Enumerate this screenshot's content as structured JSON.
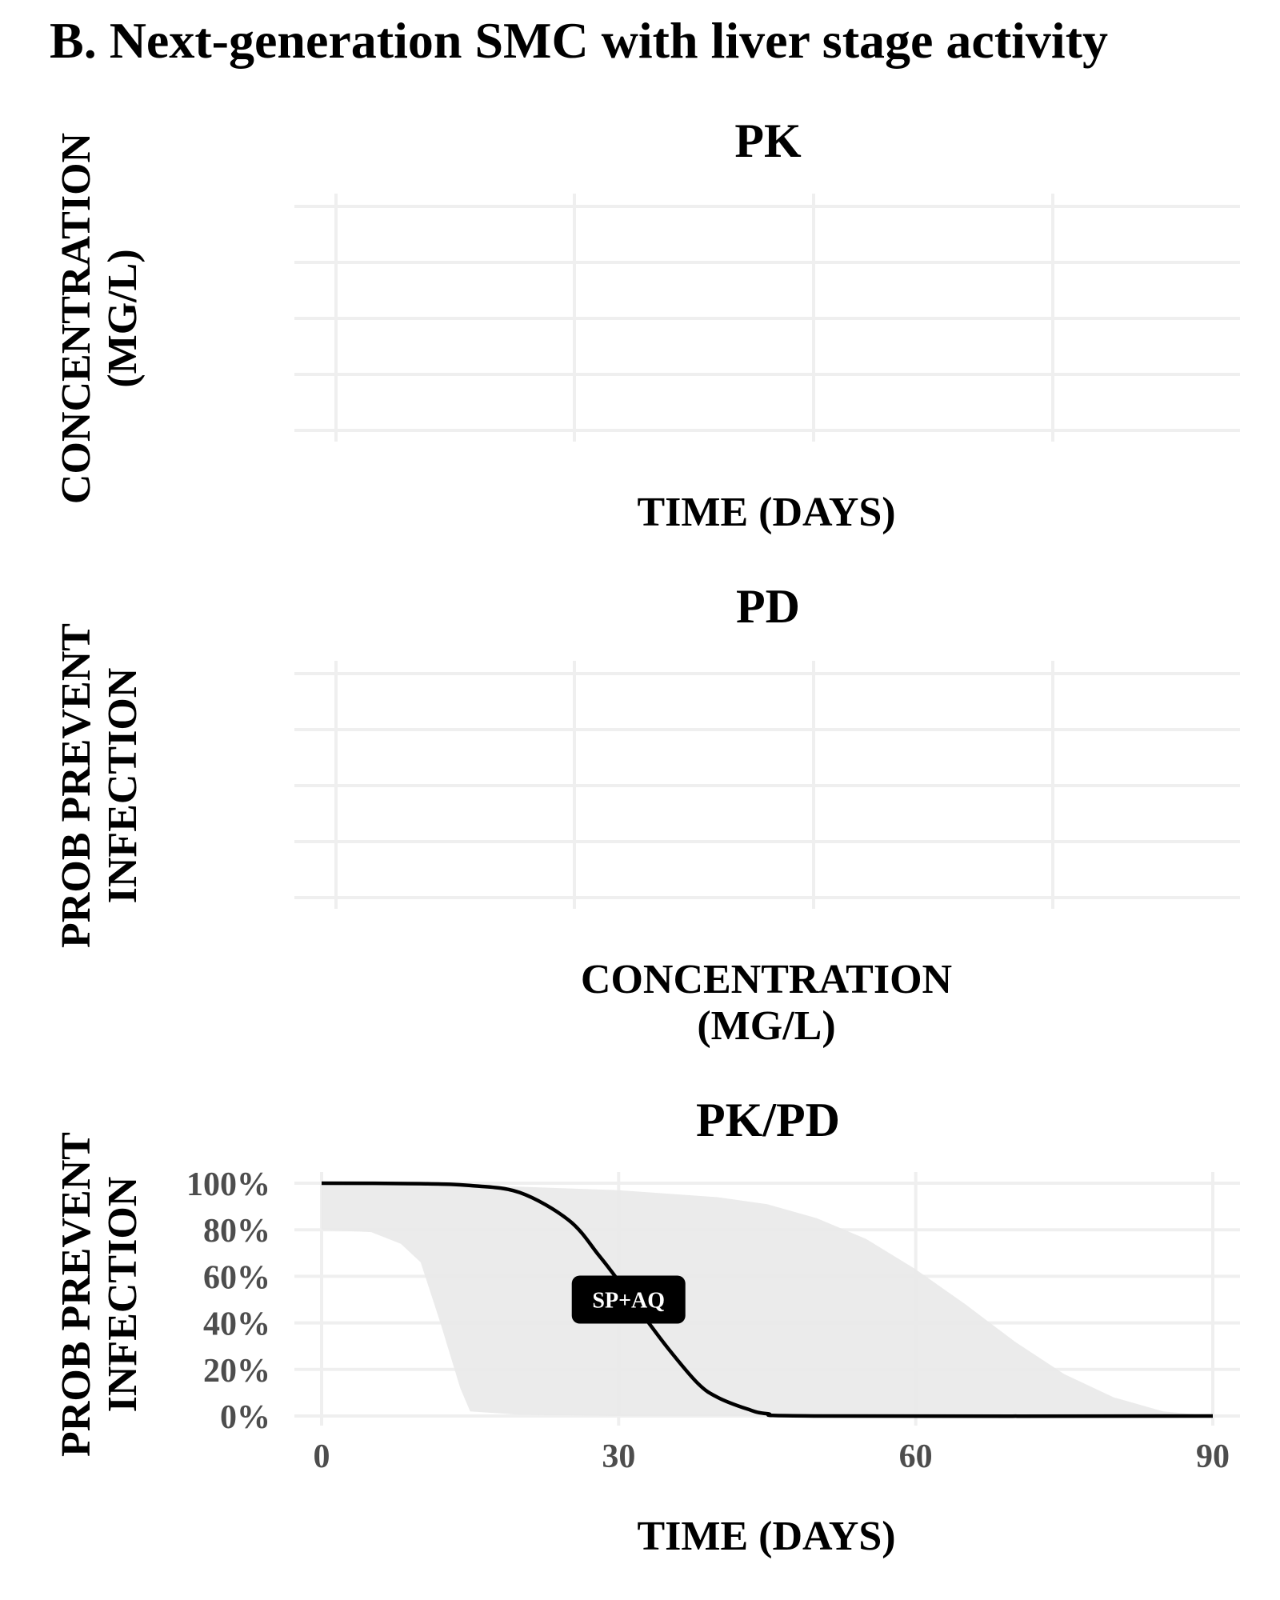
{
  "figure_title": "B. Next-generation SMC with liver stage activity",
  "chart_data": [
    {
      "panel": "pk",
      "type": "line",
      "title": "PK",
      "xlabel": "TIME  (DAYS)",
      "ylabel": [
        "CONCENTRATION",
        "(MG/L)"
      ],
      "grid": true,
      "series": []
    },
    {
      "panel": "pd",
      "type": "line",
      "title": "PD",
      "xlabel": [
        "CONCENTRATION",
        "(MG/L)"
      ],
      "ylabel": [
        "PROB  PREVENT",
        "INFECTION"
      ],
      "grid": true,
      "series": []
    },
    {
      "panel": "pkpd",
      "type": "area",
      "title": "PK/PD",
      "xlabel": "TIME  (DAYS)",
      "ylabel": [
        "PROB  PREVENT",
        "INFECTION"
      ],
      "xlim": [
        0,
        90
      ],
      "ylim": [
        0,
        100
      ],
      "x_ticks": [
        "0",
        "30",
        "60",
        "90"
      ],
      "y_ticks": [
        "0%",
        "20%",
        "40%",
        "60%",
        "80%",
        "100%"
      ],
      "grid": true,
      "series": [
        {
          "kind": "line",
          "color": "#000000",
          "label": "SP+AQ",
          "label_x": 31,
          "label_y": 50,
          "x": [
            0,
            10,
            15,
            20,
            25,
            28,
            30,
            32,
            35,
            38,
            40,
            43,
            45,
            50,
            90
          ],
          "y": [
            100,
            99.8,
            99,
            96,
            84,
            69,
            58,
            46,
            29,
            14,
            8,
            3,
            1,
            0,
            0
          ]
        },
        {
          "kind": "band",
          "color": "#e9e9e9",
          "x": [
            0,
            5,
            8,
            10,
            12,
            14,
            15,
            20,
            30,
            40,
            45,
            50,
            55,
            60,
            65,
            70,
            75,
            80,
            85,
            90
          ],
          "upper": [
            100,
            99.8,
            99.5,
            99.3,
            99,
            98.8,
            98.7,
            98.5,
            97,
            94,
            91,
            85,
            76,
            63,
            48,
            32,
            18,
            8,
            2,
            0
          ],
          "lower": [
            80,
            79,
            74,
            66,
            40,
            12,
            2,
            0.5,
            0,
            0,
            0,
            0,
            0,
            0,
            0,
            0,
            0,
            0,
            0,
            0
          ]
        }
      ]
    }
  ]
}
